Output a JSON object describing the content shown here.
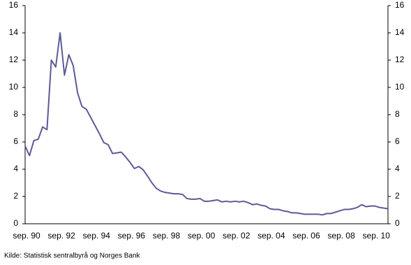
{
  "chart_data": {
    "type": "line",
    "categories": [
      "sep. 90",
      null,
      null,
      null,
      null,
      null,
      null,
      null,
      "sep. 92",
      null,
      null,
      null,
      null,
      null,
      null,
      null,
      "sep. 94",
      null,
      null,
      null,
      null,
      null,
      null,
      null,
      "sep. 96",
      null,
      null,
      null,
      null,
      null,
      null,
      null,
      "sep. 98",
      null,
      null,
      null,
      null,
      null,
      null,
      null,
      "sep. 00",
      null,
      null,
      null,
      null,
      null,
      null,
      null,
      "sep. 02",
      null,
      null,
      null,
      null,
      null,
      null,
      null,
      "sep. 04",
      null,
      null,
      null,
      null,
      null,
      null,
      null,
      "sep. 06",
      null,
      null,
      null,
      null,
      null,
      null,
      null,
      "sep. 08",
      null,
      null,
      null,
      null,
      null,
      null,
      null,
      "sep. 10",
      null,
      null,
      null
    ],
    "values": [
      5.7,
      5.0,
      6.1,
      6.2,
      7.1,
      6.9,
      12.0,
      11.5,
      14.0,
      10.9,
      12.4,
      11.6,
      9.6,
      8.6,
      8.4,
      7.8,
      7.2,
      6.6,
      5.95,
      5.8,
      5.15,
      5.2,
      5.25,
      4.9,
      4.5,
      4.05,
      4.2,
      3.95,
      3.5,
      3.0,
      2.6,
      2.4,
      2.3,
      2.25,
      2.2,
      2.2,
      2.15,
      1.85,
      1.8,
      1.8,
      1.85,
      1.65,
      1.65,
      1.7,
      1.75,
      1.6,
      1.65,
      1.6,
      1.65,
      1.6,
      1.65,
      1.55,
      1.4,
      1.45,
      1.35,
      1.3,
      1.1,
      1.05,
      1.05,
      0.95,
      0.9,
      0.8,
      0.8,
      0.75,
      0.7,
      0.7,
      0.7,
      0.7,
      0.65,
      0.75,
      0.75,
      0.85,
      0.95,
      1.05,
      1.05,
      1.1,
      1.2,
      1.4,
      1.25,
      1.3,
      1.3,
      1.2,
      1.15,
      1.1
    ],
    "color": "#5b5b96",
    "ylim": [
      0,
      16
    ],
    "yticks": [
      0,
      2,
      4,
      6,
      8,
      10,
      12,
      14,
      16
    ],
    "y2lim": [
      0,
      16
    ],
    "y2ticks": [
      0,
      2,
      4,
      6,
      8,
      10,
      12,
      14,
      16
    ],
    "source": "Kilde: Statistisk sentralbyrå og Norges Bank"
  }
}
